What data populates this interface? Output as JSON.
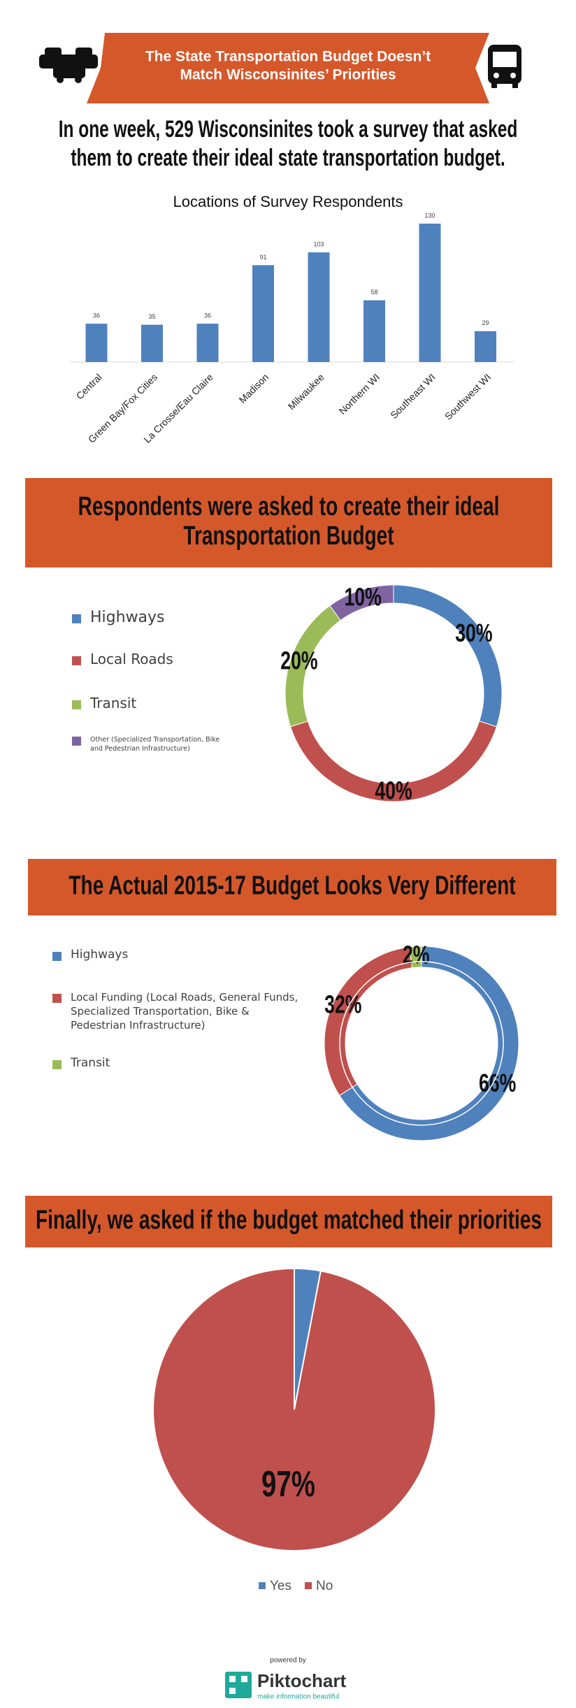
{
  "header": {
    "title_lines": [
      "The State Transportation Budget Doesn’t",
      "Match Wisconsinites’ Priorities"
    ]
  },
  "intro": {
    "lines": [
      "In one week, 529 Wisconsinites took a survey that asked",
      "them to create their ideal state transportation budget."
    ]
  },
  "chart_data": [
    {
      "type": "bar",
      "title": "Locations of Survey Respondents",
      "categories": [
        "Central",
        "Green Bay/Fox Cities",
        "La Crosse/Eau Claire",
        "Madison",
        "Milwaukee",
        "Northern WI",
        "Southeast WI",
        "Southwest WI"
      ],
      "values": [
        36,
        35,
        36,
        91,
        103,
        58,
        130,
        29
      ],
      "color": "#4f81bd"
    },
    {
      "type": "donut",
      "title_lines": [
        "Respondents were asked to create their ideal",
        "Transportation Budget"
      ],
      "categories": [
        "Highways",
        "Local Roads",
        "Transit",
        "Other (Specialized Transportation, Bike and Pedestrian Infrastructure)"
      ],
      "values": [
        30,
        40,
        20,
        10
      ],
      "value_labels": [
        "30%",
        "40%",
        "20%",
        "10%"
      ],
      "colors": [
        "#4f81bd",
        "#c0504d",
        "#9bbb59",
        "#8064a2"
      ]
    },
    {
      "type": "donut",
      "title_lines": [
        "The Actual 2015-17 Budget Looks Very Different"
      ],
      "categories": [
        "Highways",
        "Local Funding (Local Roads, General Funds, Specialized Transportation, Bike & Pedestrian Infrastructure)",
        "Transit"
      ],
      "values": [
        66,
        32,
        2
      ],
      "value_labels": [
        "66%",
        "32%",
        "2%"
      ],
      "colors": [
        "#4f81bd",
        "#c0504d",
        "#9bbb59"
      ]
    },
    {
      "type": "pie",
      "title_lines": [
        "Finally, we asked if the budget matched their priorities"
      ],
      "categories": [
        "Yes",
        "No"
      ],
      "values": [
        3,
        97
      ],
      "value_labels": [
        null,
        "97%"
      ],
      "colors": [
        "#4f81bd",
        "#c0504d"
      ]
    }
  ],
  "footer": {
    "powered_by": "powered by",
    "brand": "Piktochart",
    "tagline": "make information beautiful"
  }
}
